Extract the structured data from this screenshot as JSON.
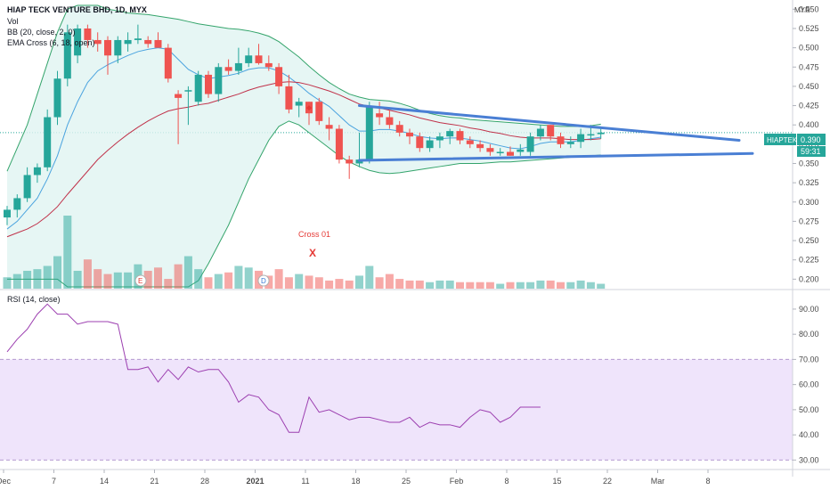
{
  "header": {
    "title": "HIAP TECK VENTURE BHD, 1D, MYX",
    "indicators": [
      "Vol",
      "BB (20, close, 2, 0)",
      "EMA Cross (6, 18, open)"
    ],
    "currency": "MYR"
  },
  "rsi_header": {
    "title": "RSI (14, close)"
  },
  "price_tag": {
    "symbol": "HIAPTEK",
    "price": "0.390",
    "countdown": "59:31"
  },
  "annotation": {
    "label": "Cross 01",
    "marker": "X"
  },
  "events": [
    "E",
    "D"
  ],
  "colors": {
    "up": "#26a69a",
    "down": "#ef5350",
    "bb_fill": "#e0f4f1",
    "bb_line": "#34a46b",
    "ema_fast": "#4aa3df",
    "ema_slow": "#c0324a",
    "trend": "#4a7fd4",
    "rsi": "#9c3fb0",
    "rsi_band": "#efe4fb"
  },
  "chart_data": [
    {
      "type": "candlestick",
      "x_ticks": [
        "Dec",
        "7",
        "14",
        "21",
        "28",
        "2021",
        "11",
        "18",
        "25",
        "Feb",
        "8",
        "15",
        "22",
        "Mar",
        "8"
      ],
      "y_ticks": [
        "0.550",
        "0.525",
        "0.500",
        "0.475",
        "0.450",
        "0.425",
        "0.400",
        "0.375",
        "0.350",
        "0.325",
        "0.300",
        "0.275",
        "0.250",
        "0.225",
        "0.200"
      ],
      "ylim": [
        0.19,
        0.555
      ],
      "candles": [
        {
          "o": 0.28,
          "h": 0.295,
          "l": 0.27,
          "c": 0.29
        },
        {
          "o": 0.29,
          "h": 0.31,
          "l": 0.28,
          "c": 0.305
        },
        {
          "o": 0.305,
          "h": 0.345,
          "l": 0.3,
          "c": 0.335
        },
        {
          "o": 0.335,
          "h": 0.35,
          "l": 0.325,
          "c": 0.345
        },
        {
          "o": 0.345,
          "h": 0.42,
          "l": 0.34,
          "c": 0.41
        },
        {
          "o": 0.41,
          "h": 0.47,
          "l": 0.4,
          "c": 0.46
        },
        {
          "o": 0.46,
          "h": 0.53,
          "l": 0.45,
          "c": 0.52
        },
        {
          "o": 0.49,
          "h": 0.53,
          "l": 0.48,
          "c": 0.525
        },
        {
          "o": 0.525,
          "h": 0.53,
          "l": 0.5,
          "c": 0.51
        },
        {
          "o": 0.51,
          "h": 0.52,
          "l": 0.495,
          "c": 0.505
        },
        {
          "o": 0.51,
          "h": 0.515,
          "l": 0.465,
          "c": 0.49
        },
        {
          "o": 0.49,
          "h": 0.515,
          "l": 0.48,
          "c": 0.51
        },
        {
          "o": 0.505,
          "h": 0.52,
          "l": 0.495,
          "c": 0.51
        },
        {
          "o": 0.51,
          "h": 0.53,
          "l": 0.505,
          "c": 0.512
        },
        {
          "o": 0.51,
          "h": 0.515,
          "l": 0.5,
          "c": 0.505
        },
        {
          "o": 0.51,
          "h": 0.52,
          "l": 0.5,
          "c": 0.5
        },
        {
          "o": 0.5,
          "h": 0.505,
          "l": 0.455,
          "c": 0.46
        },
        {
          "o": 0.44,
          "h": 0.445,
          "l": 0.375,
          "c": 0.435
        },
        {
          "o": 0.445,
          "h": 0.45,
          "l": 0.4,
          "c": 0.445
        },
        {
          "o": 0.43,
          "h": 0.47,
          "l": 0.425,
          "c": 0.465
        },
        {
          "o": 0.465,
          "h": 0.47,
          "l": 0.435,
          "c": 0.44
        },
        {
          "o": 0.44,
          "h": 0.48,
          "l": 0.43,
          "c": 0.475
        },
        {
          "o": 0.475,
          "h": 0.485,
          "l": 0.465,
          "c": 0.47
        },
        {
          "o": 0.47,
          "h": 0.5,
          "l": 0.465,
          "c": 0.48
        },
        {
          "o": 0.48,
          "h": 0.5,
          "l": 0.475,
          "c": 0.49
        },
        {
          "o": 0.49,
          "h": 0.505,
          "l": 0.478,
          "c": 0.48
        },
        {
          "o": 0.48,
          "h": 0.49,
          "l": 0.47,
          "c": 0.475
        },
        {
          "o": 0.475,
          "h": 0.48,
          "l": 0.44,
          "c": 0.45
        },
        {
          "o": 0.45,
          "h": 0.465,
          "l": 0.415,
          "c": 0.42
        },
        {
          "o": 0.425,
          "h": 0.435,
          "l": 0.41,
          "c": 0.43
        },
        {
          "o": 0.43,
          "h": 0.43,
          "l": 0.4,
          "c": 0.415
        },
        {
          "o": 0.43,
          "h": 0.435,
          "l": 0.4,
          "c": 0.405
        },
        {
          "o": 0.4,
          "h": 0.41,
          "l": 0.38,
          "c": 0.395
        },
        {
          "o": 0.395,
          "h": 0.4,
          "l": 0.35,
          "c": 0.355
        },
        {
          "o": 0.355,
          "h": 0.36,
          "l": 0.33,
          "c": 0.35
        },
        {
          "o": 0.35,
          "h": 0.39,
          "l": 0.345,
          "c": 0.355
        },
        {
          "o": 0.355,
          "h": 0.43,
          "l": 0.35,
          "c": 0.425
        },
        {
          "o": 0.415,
          "h": 0.43,
          "l": 0.4,
          "c": 0.41
        },
        {
          "o": 0.41,
          "h": 0.42,
          "l": 0.395,
          "c": 0.4
        },
        {
          "o": 0.4,
          "h": 0.405,
          "l": 0.385,
          "c": 0.39
        },
        {
          "o": 0.39,
          "h": 0.395,
          "l": 0.375,
          "c": 0.385
        },
        {
          "o": 0.385,
          "h": 0.39,
          "l": 0.365,
          "c": 0.37
        },
        {
          "o": 0.37,
          "h": 0.385,
          "l": 0.365,
          "c": 0.38
        },
        {
          "o": 0.38,
          "h": 0.39,
          "l": 0.37,
          "c": 0.385
        },
        {
          "o": 0.385,
          "h": 0.395,
          "l": 0.375,
          "c": 0.392
        },
        {
          "o": 0.392,
          "h": 0.395,
          "l": 0.375,
          "c": 0.38
        },
        {
          "o": 0.38,
          "h": 0.385,
          "l": 0.37,
          "c": 0.375
        },
        {
          "o": 0.375,
          "h": 0.38,
          "l": 0.365,
          "c": 0.37
        },
        {
          "o": 0.37,
          "h": 0.375,
          "l": 0.36,
          "c": 0.365
        },
        {
          "o": 0.365,
          "h": 0.37,
          "l": 0.36,
          "c": 0.365
        },
        {
          "o": 0.365,
          "h": 0.372,
          "l": 0.36,
          "c": 0.36
        },
        {
          "o": 0.365,
          "h": 0.375,
          "l": 0.36,
          "c": 0.368
        },
        {
          "o": 0.365,
          "h": 0.39,
          "l": 0.36,
          "c": 0.385
        },
        {
          "o": 0.385,
          "h": 0.4,
          "l": 0.38,
          "c": 0.395
        },
        {
          "o": 0.4,
          "h": 0.4,
          "l": 0.38,
          "c": 0.385
        },
        {
          "o": 0.385,
          "h": 0.39,
          "l": 0.37,
          "c": 0.375
        },
        {
          "o": 0.375,
          "h": 0.385,
          "l": 0.37,
          "c": 0.378
        },
        {
          "o": 0.378,
          "h": 0.395,
          "l": 0.37,
          "c": 0.388
        },
        {
          "o": 0.388,
          "h": 0.4,
          "l": 0.38,
          "c": 0.388
        },
        {
          "o": 0.388,
          "h": 0.395,
          "l": 0.382,
          "c": 0.39
        }
      ],
      "volume": [
        14,
        18,
        22,
        24,
        28,
        40,
        90,
        22,
        36,
        24,
        18,
        20,
        20,
        30,
        22,
        26,
        12,
        30,
        40,
        24,
        14,
        18,
        20,
        28,
        26,
        22,
        16,
        24,
        14,
        18,
        16,
        14,
        10,
        12,
        10,
        16,
        28,
        14,
        18,
        12,
        10,
        10,
        8,
        10,
        10,
        8,
        8,
        8,
        8,
        6,
        8,
        8,
        8,
        10,
        10,
        8,
        8,
        10,
        8,
        6
      ],
      "bb_upper": [
        0.34,
        0.37,
        0.4,
        0.44,
        0.48,
        0.52,
        0.55,
        0.555,
        0.555,
        0.555,
        0.55,
        0.548,
        0.545,
        0.544,
        0.543,
        0.541,
        0.539,
        0.537,
        0.534,
        0.531,
        0.529,
        0.527,
        0.525,
        0.524,
        0.522,
        0.519,
        0.515,
        0.508,
        0.498,
        0.488,
        0.476,
        0.465,
        0.455,
        0.447,
        0.44,
        0.436,
        0.433,
        0.432,
        0.431,
        0.428,
        0.424,
        0.419,
        0.415,
        0.412,
        0.41,
        0.409,
        0.407,
        0.406,
        0.405,
        0.404,
        0.403,
        0.402,
        0.401,
        0.4,
        0.399,
        0.398,
        0.398,
        0.398,
        0.399,
        0.401
      ],
      "bb_lower": [
        0.2,
        0.2,
        0.2,
        0.2,
        0.2,
        0.2,
        0.19,
        0.19,
        0.19,
        0.19,
        0.19,
        0.19,
        0.19,
        0.19,
        0.19,
        0.19,
        0.19,
        0.19,
        0.19,
        0.198,
        0.22,
        0.245,
        0.27,
        0.3,
        0.33,
        0.355,
        0.38,
        0.398,
        0.405,
        0.4,
        0.39,
        0.38,
        0.37,
        0.36,
        0.352,
        0.346,
        0.341,
        0.338,
        0.337,
        0.338,
        0.34,
        0.342,
        0.344,
        0.346,
        0.348,
        0.35,
        0.35,
        0.35,
        0.351,
        0.352,
        0.352,
        0.353,
        0.354,
        0.355,
        0.356,
        0.357,
        0.358,
        0.359,
        0.36,
        0.361
      ],
      "ema_fast": [
        0.265,
        0.275,
        0.29,
        0.305,
        0.33,
        0.36,
        0.4,
        0.43,
        0.455,
        0.47,
        0.478,
        0.484,
        0.49,
        0.495,
        0.498,
        0.5,
        0.498,
        0.485,
        0.472,
        0.465,
        0.46,
        0.462,
        0.464,
        0.467,
        0.472,
        0.474,
        0.474,
        0.47,
        0.462,
        0.452,
        0.441,
        0.432,
        0.424,
        0.412,
        0.4,
        0.392,
        0.392,
        0.394,
        0.394,
        0.392,
        0.389,
        0.385,
        0.383,
        0.382,
        0.383,
        0.383,
        0.381,
        0.379,
        0.376,
        0.373,
        0.37,
        0.369,
        0.372,
        0.376,
        0.378,
        0.378,
        0.378,
        0.38,
        0.382,
        0.384
      ],
      "ema_slow": [
        0.255,
        0.26,
        0.265,
        0.272,
        0.282,
        0.294,
        0.31,
        0.325,
        0.34,
        0.355,
        0.367,
        0.378,
        0.388,
        0.397,
        0.405,
        0.412,
        0.418,
        0.421,
        0.423,
        0.426,
        0.428,
        0.432,
        0.436,
        0.44,
        0.445,
        0.449,
        0.452,
        0.455,
        0.456,
        0.455,
        0.452,
        0.448,
        0.444,
        0.439,
        0.433,
        0.427,
        0.424,
        0.422,
        0.419,
        0.416,
        0.413,
        0.409,
        0.406,
        0.403,
        0.401,
        0.399,
        0.396,
        0.394,
        0.391,
        0.389,
        0.386,
        0.384,
        0.383,
        0.383,
        0.383,
        0.382,
        0.381,
        0.381,
        0.381,
        0.382
      ]
    },
    {
      "type": "line",
      "title": "RSI (14, close)",
      "y_ticks": [
        "90.00",
        "80.00",
        "70.00",
        "60.00",
        "50.00",
        "40.00",
        "30.00"
      ],
      "ylim": [
        28,
        96
      ],
      "band": [
        30,
        70
      ],
      "values": [
        73,
        78,
        82,
        88,
        92,
        88,
        88,
        84,
        85,
        85,
        85,
        84,
        66,
        66,
        67,
        61,
        66,
        62,
        67,
        65,
        66,
        66,
        61,
        53,
        56,
        55,
        50,
        48,
        41,
        41,
        55,
        49,
        50,
        48,
        46,
        47,
        47,
        46,
        45,
        45,
        47,
        43,
        45,
        44,
        44,
        43,
        47,
        50,
        49,
        45,
        47,
        51,
        51,
        51
      ]
    }
  ]
}
